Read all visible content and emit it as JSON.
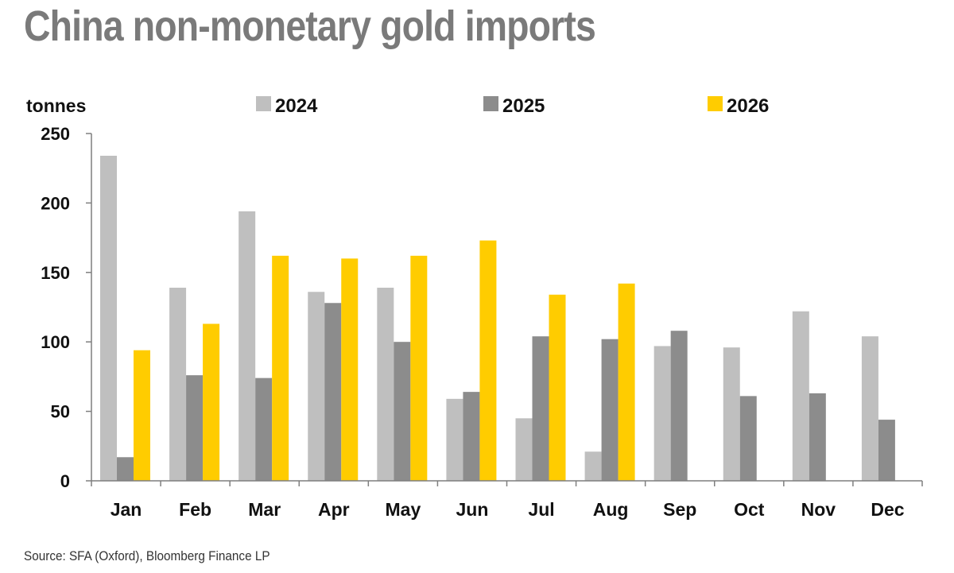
{
  "title": "China non-monetary gold imports",
  "source": "Source: SFA (Oxford), Bloomberg Finance LP",
  "chart_data": {
    "type": "bar",
    "title": "China non-monetary gold imports",
    "ylabel": "tonnes",
    "xlabel": "",
    "ylim": [
      0,
      250
    ],
    "yticks": [
      0,
      50,
      100,
      150,
      200,
      250
    ],
    "grid": false,
    "legend_position": "top",
    "categories": [
      "Jan",
      "Feb",
      "Mar",
      "Apr",
      "May",
      "Jun",
      "Jul",
      "Aug",
      "Sep",
      "Oct",
      "Nov",
      "Dec"
    ],
    "series": [
      {
        "name": "2024",
        "color": "#bfbfbf",
        "values": [
          234,
          139,
          194,
          136,
          139,
          59,
          45,
          21,
          97,
          96,
          122,
          104
        ]
      },
      {
        "name": "2025",
        "color": "#8c8c8c",
        "values": [
          17,
          76,
          74,
          128,
          100,
          64,
          104,
          102,
          108,
          61,
          63,
          44
        ]
      },
      {
        "name": "2026",
        "color": "#ffcc00",
        "values": [
          94,
          113,
          162,
          160,
          162,
          173,
          134,
          142,
          null,
          null,
          null,
          null
        ]
      }
    ]
  }
}
